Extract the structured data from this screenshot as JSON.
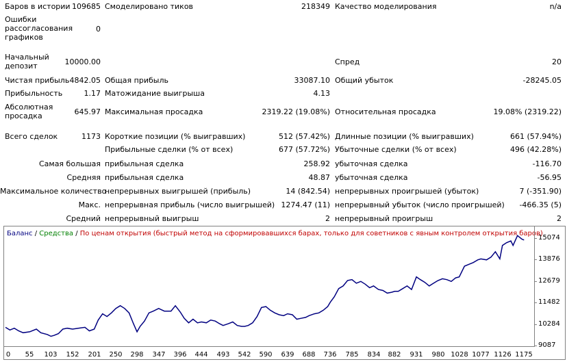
{
  "report": {
    "bars_label": "Баров в истории",
    "bars_value": "109685",
    "ticks_label": "Смоделировано тиков",
    "ticks_value": "218349",
    "quality_label": "Качество моделирования",
    "quality_value": "n/a",
    "mismatch_label": "Ошибки рассогласования графиков",
    "mismatch_value": "0",
    "deposit_label": "Начальный депозит",
    "deposit_value": "10000.00",
    "spread_label": "Спред",
    "spread_value": "20",
    "net_profit_label": "Чистая прибыль",
    "net_profit_value": "4842.05",
    "gross_profit_label": "Общая прибыль",
    "gross_profit_value": "33087.10",
    "gross_loss_label": "Общий убыток",
    "gross_loss_value": "-28245.05",
    "profit_factor_label": "Прибыльность",
    "profit_factor_value": "1.17",
    "expected_payoff_label": "Матожидание выигрыша",
    "expected_payoff_value": "4.13",
    "abs_drawdown_label": "Абсолютная просадка",
    "abs_drawdown_value": "645.97",
    "max_drawdown_label": "Максимальная просадка",
    "max_drawdown_value": "2319.22 (19.08%)",
    "rel_drawdown_label": "Относительная просадка",
    "rel_drawdown_value": "19.08% (2319.22)",
    "total_trades_label": "Всего сделок",
    "total_trades_value": "1173",
    "short_label": "Короткие позиции (% выигравших)",
    "short_value": "512 (57.42%)",
    "long_label": "Длинные позиции (% выигравших)",
    "long_value": "661 (57.94%)",
    "profit_trades_label": "Прибыльные сделки (% от всех)",
    "profit_trades_value": "677 (57.72%)",
    "loss_trades_label": "Убыточные сделки (% от всех)",
    "loss_trades_value": "496 (42.28%)",
    "largest_label": "Самая большая",
    "largest_profit_label": "прибыльная сделка",
    "largest_profit_value": "258.92",
    "largest_loss_label": "убыточная сделка",
    "largest_loss_value": "-116.70",
    "average_label": "Средняя",
    "average_profit_label": "прибыльная сделка",
    "average_profit_value": "48.87",
    "average_loss_label": "убыточная сделка",
    "average_loss_value": "-56.95",
    "max_count_label": "Максимальное количество",
    "max_consec_wins_label": "непрерывных выигрышей (прибыль)",
    "max_consec_wins_value": "14 (842.54)",
    "max_consec_losses_label": "непрерывных проигрышей (убыток)",
    "max_consec_losses_value": "7 (-351.90)",
    "max_label": "Макс.",
    "max_consec_profit_label": "непрерывная прибыль (число выигрышей)",
    "max_consec_profit_value": "1274.47 (11)",
    "max_consec_loss_label": "непрерывный убыток (число проигрышей)",
    "max_consec_loss_value": "-466.35 (5)",
    "avg_label": "Средний",
    "avg_consec_wins_label": "непрерывный выигрыш",
    "avg_consec_wins_value": "2",
    "avg_consec_losses_label": "непрерывный проигрыш",
    "avg_consec_losses_value": "2"
  },
  "legend": {
    "balance": "Баланс",
    "sep1": " / ",
    "equity": "Средства",
    "sep2": " / ",
    "note": "По ценам открытия (быстрый метод на сформировавшихся барах, только для советников с явным контролем открытия баров)",
    "balance_color": "#000080",
    "equity_color": "#008000",
    "note_color": "#c00000"
  },
  "chart_data": {
    "type": "line",
    "title": "",
    "xlabel": "",
    "ylabel": "",
    "x_ticks": [
      "0",
      "55",
      "103",
      "152",
      "201",
      "250",
      "298",
      "347",
      "396",
      "444",
      "493",
      "542",
      "590",
      "639",
      "688",
      "736",
      "785",
      "834",
      "882",
      "931",
      "980",
      "1028",
      "1077",
      "1126",
      "1175"
    ],
    "y_ticks": [
      "15074",
      "13876",
      "12679",
      "11482",
      "10284",
      "9087"
    ],
    "xlim": [
      0,
      1190
    ],
    "ylim": [
      9087,
      15400
    ],
    "series": [
      {
        "color": "#000080",
        "x": [
          0,
          10,
          20,
          30,
          40,
          55,
          70,
          80,
          95,
          103,
          110,
          120,
          130,
          140,
          152,
          165,
          180,
          190,
          201,
          210,
          220,
          230,
          240,
          250,
          260,
          270,
          280,
          290,
          298,
          305,
          315,
          325,
          335,
          347,
          360,
          375,
          385,
          396,
          405,
          415,
          425,
          435,
          444,
          455,
          465,
          475,
          485,
          493,
          505,
          515,
          525,
          535,
          542,
          550,
          560,
          570,
          580,
          590,
          600,
          610,
          620,
          630,
          639,
          650,
          660,
          670,
          680,
          688,
          700,
          710,
          720,
          730,
          736,
          745,
          755,
          765,
          775,
          785,
          795,
          805,
          815,
          825,
          834,
          845,
          855,
          865,
          875,
          882,
          890,
          900,
          910,
          920,
          931,
          940,
          950,
          960,
          970,
          980,
          990,
          1000,
          1010,
          1020,
          1028,
          1040,
          1050,
          1060,
          1070,
          1077,
          1090,
          1100,
          1110,
          1120,
          1126,
          1135,
          1145,
          1150,
          1160,
          1170,
          1175
        ],
        "y": [
          10100,
          9950,
          10050,
          9900,
          9800,
          9850,
          10000,
          9800,
          9700,
          9600,
          9650,
          9750,
          10000,
          10050,
          10000,
          10050,
          10100,
          9900,
          10000,
          10500,
          10850,
          10700,
          10900,
          11150,
          11300,
          11150,
          10900,
          10300,
          9850,
          10150,
          10450,
          10900,
          11000,
          11150,
          11000,
          11000,
          11300,
          10950,
          10600,
          10350,
          10550,
          10350,
          10400,
          10350,
          10500,
          10450,
          10300,
          10200,
          10300,
          10400,
          10200,
          10150,
          10150,
          10200,
          10350,
          10700,
          11200,
          11250,
          11050,
          10900,
          10800,
          10750,
          10850,
          10800,
          10550,
          10600,
          10650,
          10750,
          10850,
          10900,
          11050,
          11250,
          11500,
          11800,
          12250,
          12400,
          12700,
          12750,
          12550,
          12650,
          12500,
          12300,
          12400,
          12200,
          12150,
          12000,
          12050,
          12100,
          12100,
          12250,
          12400,
          12200,
          12900,
          12750,
          12600,
          12400,
          12550,
          12700,
          12800,
          12750,
          12650,
          12850,
          12900,
          13500,
          13600,
          13700,
          13850,
          13900,
          13850,
          14000,
          14300,
          13900,
          14650,
          14800,
          14900,
          14650,
          15200,
          15000,
          14950
        ]
      }
    ]
  }
}
